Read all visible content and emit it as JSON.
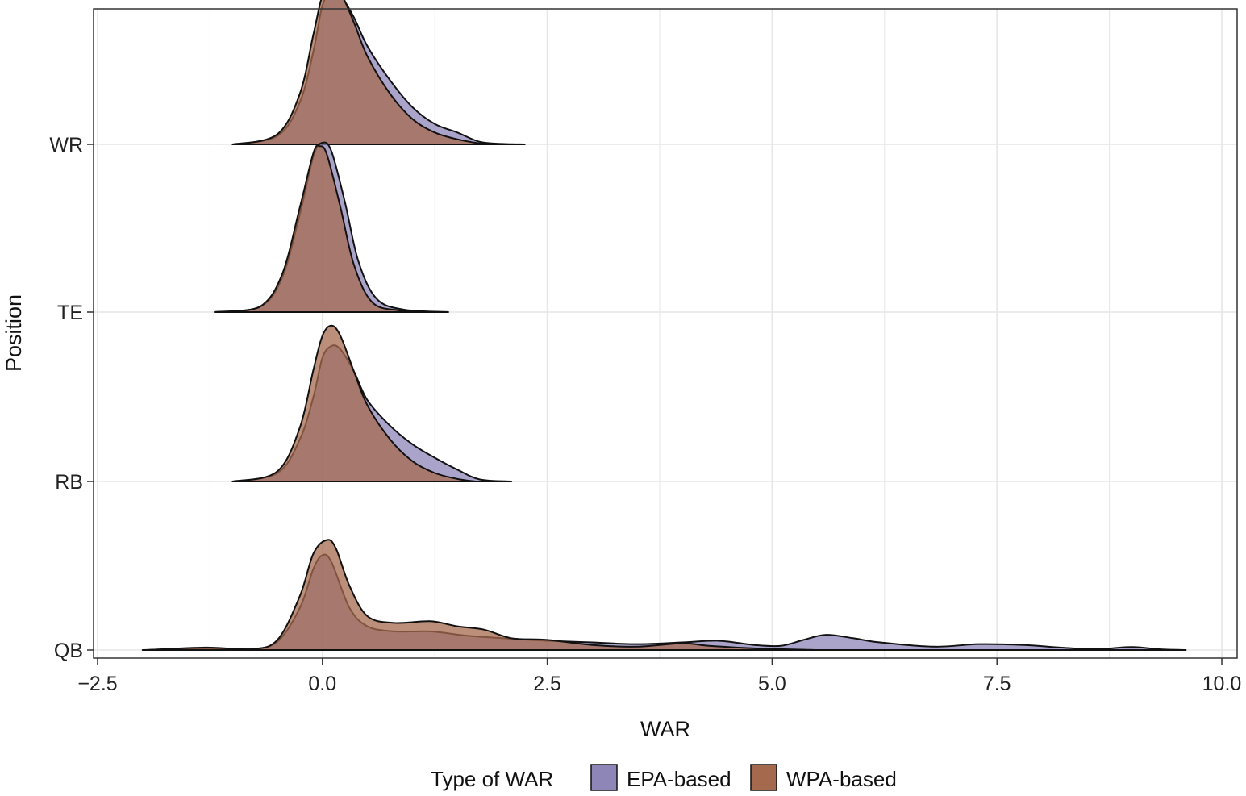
{
  "chart_data": {
    "type": "ridgeline-density",
    "title": "",
    "xlabel": "WAR",
    "ylabel": "Position",
    "xlim": [
      -2.5,
      10.0
    ],
    "x_ticks": [
      -2.5,
      0.0,
      2.5,
      5.0,
      7.5,
      10.0
    ],
    "x_tick_labels": [
      "−2.5",
      "0.0",
      "2.5",
      "5.0",
      "7.5",
      "10.0"
    ],
    "categories": [
      "QB",
      "RB",
      "TE",
      "WR"
    ],
    "grid": true,
    "legend": {
      "title": "Type of WAR",
      "position": "bottom",
      "entries": [
        "EPA-based",
        "WPA-based"
      ]
    },
    "colors": {
      "EPA-based": "#8f86b8",
      "WPA-based": "#a5694e",
      "outline": "#111111",
      "grid": "#e6e6e6"
    },
    "series": [
      {
        "name": "EPA-based",
        "densities": {
          "WR": [
            [
              -1.0,
              0
            ],
            [
              -0.5,
              0.05
            ],
            [
              -0.25,
              0.25
            ],
            [
              -0.1,
              0.55
            ],
            [
              0.0,
              0.82
            ],
            [
              0.1,
              0.9
            ],
            [
              0.2,
              0.88
            ],
            [
              0.35,
              0.75
            ],
            [
              0.5,
              0.58
            ],
            [
              0.75,
              0.38
            ],
            [
              1.0,
              0.22
            ],
            [
              1.25,
              0.12
            ],
            [
              1.5,
              0.07
            ],
            [
              1.75,
              0.015
            ],
            [
              2.0,
              0.003
            ],
            [
              2.25,
              0
            ]
          ],
          "TE": [
            [
              -1.2,
              0
            ],
            [
              -0.7,
              0.03
            ],
            [
              -0.45,
              0.2
            ],
            [
              -0.25,
              0.58
            ],
            [
              -0.1,
              0.92
            ],
            [
              0.0,
              1.0
            ],
            [
              0.1,
              0.95
            ],
            [
              0.25,
              0.65
            ],
            [
              0.4,
              0.3
            ],
            [
              0.6,
              0.08
            ],
            [
              0.9,
              0.015
            ],
            [
              1.4,
              0
            ]
          ],
          "RB": [
            [
              -1.0,
              0
            ],
            [
              -0.5,
              0.05
            ],
            [
              -0.25,
              0.25
            ],
            [
              -0.1,
              0.5
            ],
            [
              0.0,
              0.73
            ],
            [
              0.1,
              0.8
            ],
            [
              0.2,
              0.78
            ],
            [
              0.35,
              0.65
            ],
            [
              0.5,
              0.48
            ],
            [
              0.75,
              0.33
            ],
            [
              1.0,
              0.22
            ],
            [
              1.25,
              0.14
            ],
            [
              1.5,
              0.07
            ],
            [
              1.75,
              0.012
            ],
            [
              2.1,
              0
            ]
          ],
          "QB": [
            [
              -2.0,
              0
            ],
            [
              -1.3,
              0.01
            ],
            [
              -0.8,
              0.005
            ],
            [
              -0.5,
              0.05
            ],
            [
              -0.25,
              0.25
            ],
            [
              -0.1,
              0.48
            ],
            [
              0.0,
              0.56
            ],
            [
              0.1,
              0.52
            ],
            [
              0.3,
              0.25
            ],
            [
              0.5,
              0.14
            ],
            [
              0.8,
              0.11
            ],
            [
              1.2,
              0.11
            ],
            [
              1.6,
              0.085
            ],
            [
              2.0,
              0.07
            ],
            [
              2.5,
              0.055
            ],
            [
              3.0,
              0.045
            ],
            [
              3.5,
              0.035
            ],
            [
              4.0,
              0.045
            ],
            [
              4.4,
              0.055
            ],
            [
              4.8,
              0.03
            ],
            [
              5.1,
              0.025
            ],
            [
              5.35,
              0.06
            ],
            [
              5.6,
              0.09
            ],
            [
              5.9,
              0.07
            ],
            [
              6.2,
              0.045
            ],
            [
              6.8,
              0.02
            ],
            [
              7.3,
              0.035
            ],
            [
              7.8,
              0.03
            ],
            [
              8.2,
              0.015
            ],
            [
              8.6,
              0.005
            ],
            [
              9.0,
              0.018
            ],
            [
              9.3,
              0.005
            ],
            [
              9.6,
              0
            ]
          ]
        }
      },
      {
        "name": "WPA-based",
        "densities": {
          "WR": [
            [
              -0.95,
              0
            ],
            [
              -0.5,
              0.06
            ],
            [
              -0.25,
              0.3
            ],
            [
              -0.1,
              0.65
            ],
            [
              0.0,
              0.88
            ],
            [
              0.1,
              0.95
            ],
            [
              0.2,
              0.9
            ],
            [
              0.35,
              0.72
            ],
            [
              0.5,
              0.52
            ],
            [
              0.75,
              0.3
            ],
            [
              1.0,
              0.15
            ],
            [
              1.25,
              0.07
            ],
            [
              1.5,
              0.03
            ],
            [
              1.75,
              0.005
            ],
            [
              1.85,
              0
            ]
          ],
          "TE": [
            [
              -1.15,
              0
            ],
            [
              -0.7,
              0.03
            ],
            [
              -0.45,
              0.22
            ],
            [
              -0.25,
              0.62
            ],
            [
              -0.1,
              0.94
            ],
            [
              -0.03,
              0.98
            ],
            [
              0.05,
              0.93
            ],
            [
              0.2,
              0.62
            ],
            [
              0.35,
              0.28
            ],
            [
              0.55,
              0.06
            ],
            [
              0.85,
              0.01
            ],
            [
              1.3,
              0
            ]
          ],
          "RB": [
            [
              -0.95,
              0
            ],
            [
              -0.5,
              0.06
            ],
            [
              -0.25,
              0.32
            ],
            [
              -0.1,
              0.66
            ],
            [
              0.0,
              0.86
            ],
            [
              0.1,
              0.92
            ],
            [
              0.2,
              0.86
            ],
            [
              0.35,
              0.65
            ],
            [
              0.5,
              0.45
            ],
            [
              0.75,
              0.25
            ],
            [
              1.0,
              0.12
            ],
            [
              1.25,
              0.05
            ],
            [
              1.5,
              0.015
            ],
            [
              1.7,
              0
            ]
          ],
          "QB": [
            [
              -1.95,
              0
            ],
            [
              -1.3,
              0.015
            ],
            [
              -0.8,
              0.005
            ],
            [
              -0.5,
              0.06
            ],
            [
              -0.25,
              0.32
            ],
            [
              -0.1,
              0.57
            ],
            [
              0.05,
              0.65
            ],
            [
              0.15,
              0.6
            ],
            [
              0.3,
              0.38
            ],
            [
              0.5,
              0.2
            ],
            [
              0.8,
              0.16
            ],
            [
              1.2,
              0.17
            ],
            [
              1.5,
              0.14
            ],
            [
              1.8,
              0.12
            ],
            [
              2.1,
              0.07
            ],
            [
              2.5,
              0.06
            ],
            [
              3.0,
              0.03
            ],
            [
              3.5,
              0.02
            ],
            [
              4.0,
              0.04
            ],
            [
              4.3,
              0.025
            ],
            [
              4.8,
              0.01
            ],
            [
              5.5,
              0
            ]
          ]
        }
      }
    ]
  }
}
